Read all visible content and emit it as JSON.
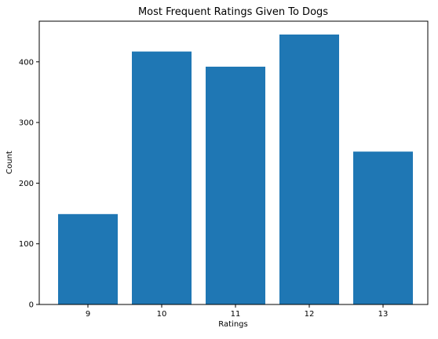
{
  "chart_data": {
    "type": "bar",
    "title": "Most Frequent Ratings Given To Dogs",
    "xlabel": "Ratings",
    "ylabel": "Count",
    "categories": [
      "9",
      "10",
      "11",
      "12",
      "13"
    ],
    "values": [
      149,
      417,
      392,
      445,
      252
    ],
    "ylim": [
      0,
      467
    ],
    "yticks": [
      0,
      100,
      200,
      300,
      400
    ],
    "grid": false,
    "bar_color": "#1f77b4"
  }
}
